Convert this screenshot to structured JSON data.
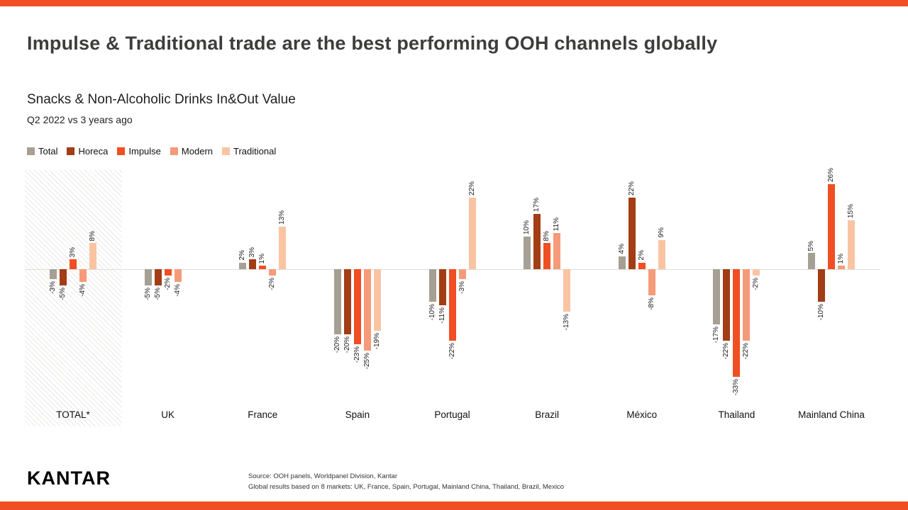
{
  "accent_color": "#f04e23",
  "header": {
    "title": "Impulse & Traditional trade are the best performing OOH channels globally"
  },
  "chart_data": {
    "type": "bar",
    "title": "Snacks & Non-Alcoholic Drinks In&Out Value",
    "subtitle": "Q2 2022 vs 3 years ago",
    "value_suffix": "%",
    "legend_position": "top-left",
    "grid": false,
    "ylim": [
      -35,
      30
    ],
    "highlight_category": "TOTAL*",
    "categories": [
      "TOTAL*",
      "UK",
      "France",
      "Spain",
      "Portugal",
      "Brazil",
      "México",
      "Thailand",
      "Mainland China"
    ],
    "series": [
      {
        "name": "Total",
        "color": "#a6a094",
        "values": [
          -3,
          -5,
          2,
          -20,
          -10,
          10,
          4,
          -17,
          5
        ]
      },
      {
        "name": "Horeca",
        "color": "#a23d16",
        "values": [
          -5,
          -5,
          3,
          -20,
          -11,
          17,
          22,
          -22,
          -10
        ]
      },
      {
        "name": "Impulse",
        "color": "#f04e23",
        "values": [
          3,
          -2,
          1,
          -23,
          -22,
          8,
          2,
          -33,
          26
        ]
      },
      {
        "name": "Modern",
        "color": "#f59b79",
        "values": [
          -4,
          -4,
          -2,
          -25,
          -3,
          11,
          -8,
          -22,
          1
        ]
      },
      {
        "name": "Traditional",
        "color": "#fac4a3",
        "values": [
          8,
          null,
          13,
          -19,
          22,
          -13,
          9,
          -2,
          15
        ]
      }
    ]
  },
  "footer": {
    "logo": "KANTAR",
    "source_line1": "Source: OOH panels, Worldpanel Division, Kantar",
    "source_line2": "Global results based on 8 markets: UK, France, Spain, Portugal, Mainland China, Thailand, Brazil, Mexico"
  }
}
